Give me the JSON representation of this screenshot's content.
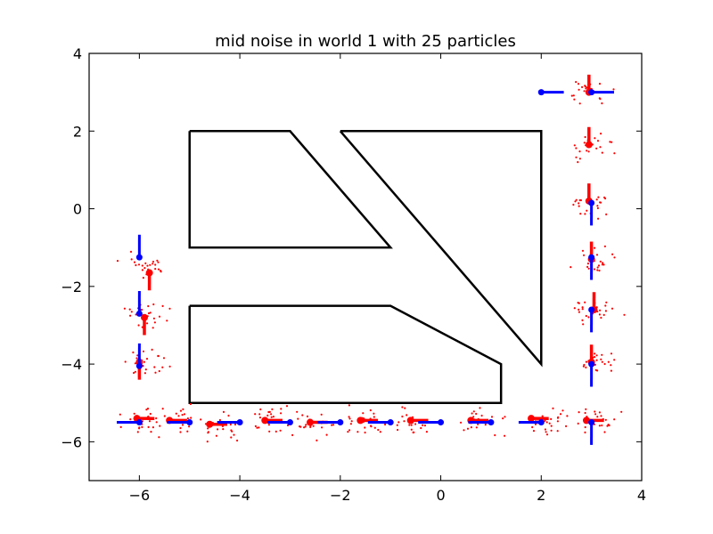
{
  "chart_data": {
    "type": "scatter",
    "title": "mid noise in world 1 with 25 particles",
    "xlabel": "",
    "ylabel": "",
    "xlim": [
      -7,
      4
    ],
    "ylim": [
      -7,
      4
    ],
    "xticks": [
      -6,
      -4,
      -2,
      0,
      2,
      4
    ],
    "yticks": [
      -6,
      -4,
      -2,
      0,
      2,
      4
    ],
    "xtick_labels": [
      "−6",
      "−4",
      "−2",
      "0",
      "2",
      "4"
    ],
    "ytick_labels": [
      "−6",
      "−4",
      "−2",
      "0",
      "2",
      "4"
    ],
    "grid": false,
    "legend": "none",
    "colors": {
      "walls": "#000000",
      "true_pose": "#0000ff",
      "estimate": "#ff0000",
      "particles": "#ff0000"
    },
    "walls": [
      [
        [
          -5,
          2
        ],
        [
          -3,
          2
        ],
        [
          -1,
          -1
        ],
        [
          -5,
          -1
        ],
        [
          -5,
          2
        ]
      ],
      [
        [
          -2,
          2
        ],
        [
          2,
          2
        ],
        [
          2,
          -4
        ],
        [
          -2,
          2
        ]
      ],
      [
        [
          -5,
          -2.5
        ],
        [
          -1,
          -2.5
        ],
        [
          1.2,
          -4
        ],
        [
          1.2,
          -5
        ],
        [
          -5,
          -5
        ],
        [
          -5,
          -2.5
        ]
      ]
    ],
    "true_poses": [
      {
        "x": -6.0,
        "y": -1.25,
        "heading": 90
      },
      {
        "x": -6.0,
        "y": -2.7,
        "heading": 90
      },
      {
        "x": -6.0,
        "y": -4.05,
        "heading": 90
      },
      {
        "x": -6.0,
        "y": -5.5,
        "heading": 180
      },
      {
        "x": -5.0,
        "y": -5.5,
        "heading": 180
      },
      {
        "x": -4.0,
        "y": -5.5,
        "heading": 180
      },
      {
        "x": -3.0,
        "y": -5.5,
        "heading": 180
      },
      {
        "x": -2.0,
        "y": -5.5,
        "heading": 180
      },
      {
        "x": -1.0,
        "y": -5.5,
        "heading": 180
      },
      {
        "x": 0.0,
        "y": -5.5,
        "heading": 180
      },
      {
        "x": 1.0,
        "y": -5.5,
        "heading": 180
      },
      {
        "x": 2.0,
        "y": -5.5,
        "heading": 180
      },
      {
        "x": 3.0,
        "y": -5.5,
        "heading": 270
      },
      {
        "x": 3.0,
        "y": -4.0,
        "heading": 270
      },
      {
        "x": 3.0,
        "y": -2.6,
        "heading": 270
      },
      {
        "x": 3.0,
        "y": -1.25,
        "heading": 270
      },
      {
        "x": 3.0,
        "y": 0.15,
        "heading": 270
      },
      {
        "x": 3.0,
        "y": 3.0,
        "heading": 0
      },
      {
        "x": 2.0,
        "y": 3.0,
        "heading": 0
      }
    ],
    "estimates": [
      {
        "x": -5.8,
        "y": -1.65,
        "heading": 270
      },
      {
        "x": -5.9,
        "y": -2.8,
        "heading": 270
      },
      {
        "x": -6.0,
        "y": -3.95,
        "heading": 270
      },
      {
        "x": -6.05,
        "y": -5.4,
        "heading": 0
      },
      {
        "x": -5.4,
        "y": -5.45,
        "heading": 0
      },
      {
        "x": -4.6,
        "y": -5.55,
        "heading": 0
      },
      {
        "x": -3.5,
        "y": -5.45,
        "heading": 0
      },
      {
        "x": -2.6,
        "y": -5.5,
        "heading": 0
      },
      {
        "x": -1.6,
        "y": -5.45,
        "heading": 0
      },
      {
        "x": -0.6,
        "y": -5.45,
        "heading": 0
      },
      {
        "x": 0.6,
        "y": -5.45,
        "heading": 0
      },
      {
        "x": 1.8,
        "y": -5.4,
        "heading": 0
      },
      {
        "x": 2.9,
        "y": -5.45,
        "heading": 0
      },
      {
        "x": 3.0,
        "y": -3.95,
        "heading": 90
      },
      {
        "x": 3.05,
        "y": -2.6,
        "heading": 90
      },
      {
        "x": 3.0,
        "y": -1.3,
        "heading": 90
      },
      {
        "x": 2.95,
        "y": 0.2,
        "heading": 90
      },
      {
        "x": 2.95,
        "y": 1.65,
        "heading": 90
      },
      {
        "x": 2.95,
        "y": 3.0,
        "heading": 90
      }
    ],
    "particle_clouds": [
      {
        "x": -5.85,
        "y": -1.5
      },
      {
        "x": -5.9,
        "y": -2.7
      },
      {
        "x": -5.85,
        "y": -4.0
      },
      {
        "x": -5.9,
        "y": -5.45
      },
      {
        "x": -5.15,
        "y": -5.45
      },
      {
        "x": -4.4,
        "y": -5.6
      },
      {
        "x": -3.3,
        "y": -5.5
      },
      {
        "x": -2.6,
        "y": -5.55
      },
      {
        "x": -1.5,
        "y": -5.5
      },
      {
        "x": -0.65,
        "y": -5.5
      },
      {
        "x": 0.8,
        "y": -5.5
      },
      {
        "x": 2.1,
        "y": -5.5
      },
      {
        "x": 3.05,
        "y": -5.5
      },
      {
        "x": 3.05,
        "y": -4.0
      },
      {
        "x": 3.1,
        "y": -2.65
      },
      {
        "x": 3.1,
        "y": -1.3
      },
      {
        "x": 2.95,
        "y": 0.1
      },
      {
        "x": 2.95,
        "y": 1.6
      },
      {
        "x": 2.95,
        "y": 3.0
      }
    ]
  }
}
